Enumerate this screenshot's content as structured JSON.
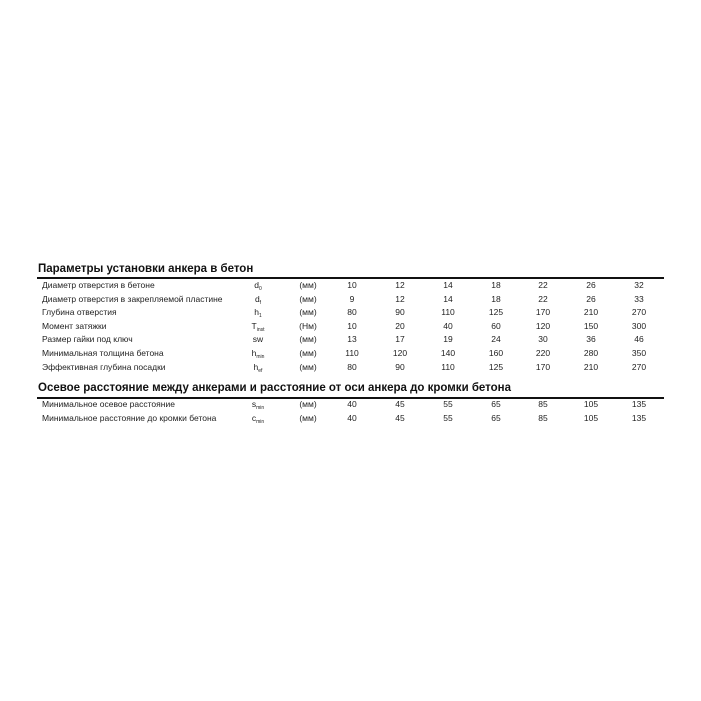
{
  "sections": [
    {
      "title": "Параметры установки анкера в бетон",
      "rows": [
        {
          "label": "Диаметр отверстия в бетоне",
          "symbol": "d",
          "sub": "0",
          "unit": "(мм)",
          "values": [
            "10",
            "12",
            "14",
            "18",
            "22",
            "26",
            "32"
          ]
        },
        {
          "label": "Диаметр отверстия в закрепляемой пластине",
          "symbol": "d",
          "sub": "f",
          "unit": "(мм)",
          "values": [
            "9",
            "12",
            "14",
            "18",
            "22",
            "26",
            "33"
          ]
        },
        {
          "label": "Глубина отверстия",
          "symbol": "h",
          "sub": "1",
          "unit": "(мм)",
          "values": [
            "80",
            "90",
            "110",
            "125",
            "170",
            "210",
            "270"
          ]
        },
        {
          "label": "Момент затяжки",
          "symbol": "T",
          "sub": "inst",
          "unit": "(Нм)",
          "values": [
            "10",
            "20",
            "40",
            "60",
            "120",
            "150",
            "300"
          ]
        },
        {
          "label": "Размер гайки под ключ",
          "symbol": "sw",
          "sub": "",
          "unit": "(мм)",
          "values": [
            "13",
            "17",
            "19",
            "24",
            "30",
            "36",
            "46"
          ]
        },
        {
          "label": "Минимальная толщина бетона",
          "symbol": "h",
          "sub": "min",
          "unit": "(мм)",
          "values": [
            "110",
            "120",
            "140",
            "160",
            "220",
            "280",
            "350"
          ]
        },
        {
          "label": "Эффективная глубина посадки",
          "symbol": "h",
          "sub": "ef",
          "unit": "(мм)",
          "values": [
            "80",
            "90",
            "110",
            "125",
            "170",
            "210",
            "270"
          ]
        }
      ]
    },
    {
      "title": "Осевое расстояние между анкерами и расстояние от оси анкера до кромки бетона",
      "rows": [
        {
          "label": "Минимальное осевое расстояние",
          "symbol": "s",
          "sub": "min",
          "unit": "(мм)",
          "values": [
            "40",
            "45",
            "55",
            "65",
            "85",
            "105",
            "135"
          ]
        },
        {
          "label": "Минимальное расстояние до кромки бетона",
          "symbol": "c",
          "sub": "min",
          "unit": "(мм)",
          "values": [
            "40",
            "45",
            "55",
            "65",
            "85",
            "105",
            "135"
          ]
        }
      ]
    }
  ]
}
